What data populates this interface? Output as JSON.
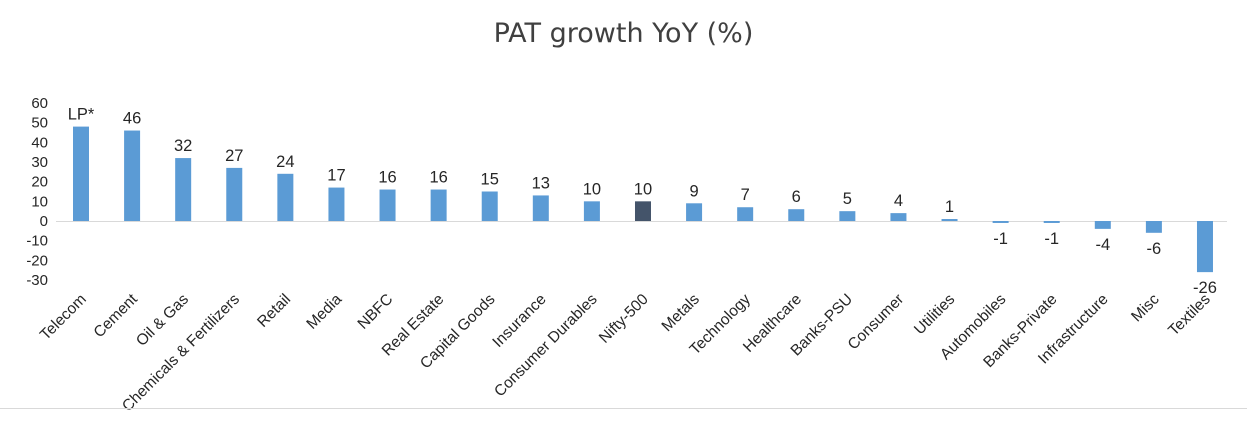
{
  "chart_data": {
    "type": "bar",
    "title": "PAT growth YoY (%)",
    "xlabel": "",
    "ylabel": "",
    "ylim": [
      -30,
      60
    ],
    "yticks": [
      60,
      50,
      40,
      30,
      20,
      10,
      0,
      -10,
      -20,
      -30
    ],
    "grid": false,
    "legend": "none",
    "categories": [
      "Telecom",
      "Cement",
      "Oil & Gas",
      "Chemicals & Fertilizers",
      "Retail",
      "Media",
      "NBFC",
      "Real Estate",
      "Capital Goods",
      "Insurance",
      "Consumer Durables",
      "Nifty-500",
      "Metals",
      "Technology",
      "Healthcare",
      "Banks-PSU",
      "Consumer",
      "Utilities",
      "Automobiles",
      "Banks-Private",
      "Infrastructure",
      "Misc",
      "Textiles"
    ],
    "values": [
      48,
      46,
      32,
      27,
      24,
      17,
      16,
      16,
      15,
      13,
      10,
      10,
      9,
      7,
      6,
      5,
      4,
      1,
      -1,
      -1,
      -4,
      -6,
      -26
    ],
    "data_labels": [
      "LP*",
      "46",
      "32",
      "27",
      "24",
      "17",
      "16",
      "16",
      "15",
      "13",
      "10",
      "10",
      "9",
      "7",
      "6",
      "5",
      "4",
      "1",
      "-1",
      "-1",
      "-4",
      "-6",
      "-26"
    ],
    "colors": {
      "default": "#5b9bd5",
      "highlight": "#44546a",
      "highlight_category": "Nifty-500"
    }
  }
}
